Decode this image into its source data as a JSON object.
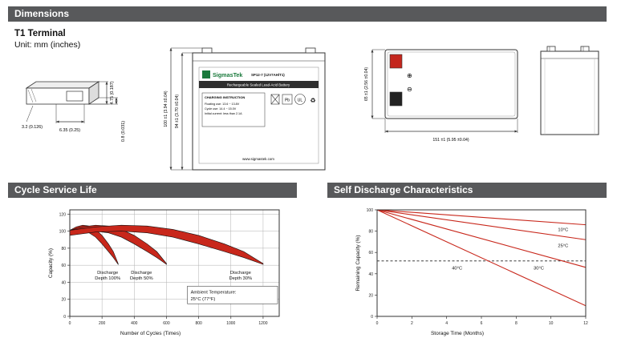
{
  "colors": {
    "header_bg": "#58595b",
    "header_text": "#ffffff",
    "red": "#c8271b",
    "brand_green": "#1a7a3c",
    "line": "#333333"
  },
  "sections": {
    "dimensions_title": "Dimensions",
    "cycle_title": "Cycle Service Life",
    "self_discharge_title": "Self Discharge Characteristics"
  },
  "dimensions": {
    "terminal_type": "T1 Terminal",
    "unit_note": "Unit: mm (inches)",
    "terminal_detail": {
      "dim_height": "4.75 (0.187)",
      "dim_slot": "3.2 (0.126)",
      "dim_width": "6.35 (0.25)",
      "dim_thickness": "0.8 (0.031)"
    },
    "front_view": {
      "dim_total_height": "100 ±1 (3.94 ±0.04)",
      "dim_case_height": "94 ±1 (3.70 ±0.04)",
      "brand": "SigmasTek",
      "model": "SP12-7 (12V7AH/T1)",
      "type_line": "Rechargeable Sealed Lead-Acid Battery",
      "charging_title": "CHARGING INSTRUCTION",
      "charging_line1": "Floating use: 13.6 ~ 13.8V",
      "charging_line2": "Cycle use: 14.4 ~ 15.0V",
      "charging_line3": "Initial current: less than 2.1A",
      "website": "www.sigmastek.com",
      "pb": "Pb",
      "ul": "UL",
      "recycle": "♻"
    },
    "top_view": {
      "dim_depth": "65 ±1 (2.56 ±0.04)",
      "dim_length": "151 ±1 (5.95 ±0.04)",
      "plus": "⊕",
      "minus": "⊖"
    }
  },
  "chart_data": [
    {
      "id": "cycle",
      "type": "area",
      "title": "Cycle Service Life",
      "xlabel": "Number of Cycles (Times)",
      "ylabel": "Capacity (%)",
      "xlim": [
        0,
        1300
      ],
      "ylim": [
        0,
        125
      ],
      "xticks": [
        0,
        200,
        400,
        600,
        800,
        1000,
        1200
      ],
      "yticks": [
        0,
        20,
        40,
        60,
        80,
        100,
        120
      ],
      "grid": true,
      "annotation_lines": [
        "Ambient Temperature:",
        "25°C (77°F)"
      ],
      "annotation_x": 750,
      "annotation_y": 27,
      "bands": [
        {
          "name": "Discharge Depth 100%",
          "label": [
            "Discharge",
            "Depth 100%"
          ],
          "label_x": 235,
          "label_y": 50,
          "upper": [
            [
              0,
              101
            ],
            [
              40,
              105
            ],
            [
              80,
              107
            ],
            [
              120,
              106
            ],
            [
              160,
              102
            ],
            [
              200,
              95
            ],
            [
              240,
              85
            ],
            [
              270,
              76
            ],
            [
              300,
              62
            ]
          ],
          "lower": [
            [
              0,
              95
            ],
            [
              40,
              99
            ],
            [
              80,
              100
            ],
            [
              120,
              98
            ],
            [
              160,
              93
            ],
            [
              200,
              85
            ],
            [
              240,
              76
            ],
            [
              270,
              69
            ],
            [
              300,
              61
            ]
          ]
        },
        {
          "name": "Discharge Depth 50%",
          "label": [
            "Discharge",
            "Depth 50%"
          ],
          "label_x": 445,
          "label_y": 50,
          "upper": [
            [
              0,
              101
            ],
            [
              80,
              105
            ],
            [
              160,
              107
            ],
            [
              240,
              106
            ],
            [
              320,
              102
            ],
            [
              400,
              95
            ],
            [
              480,
              85
            ],
            [
              540,
              76
            ],
            [
              600,
              62
            ]
          ],
          "lower": [
            [
              0,
              95
            ],
            [
              80,
              99
            ],
            [
              160,
              100
            ],
            [
              240,
              98
            ],
            [
              320,
              93
            ],
            [
              400,
              85
            ],
            [
              480,
              76
            ],
            [
              540,
              69
            ],
            [
              600,
              61
            ]
          ]
        },
        {
          "name": "Discharge Depth 30%",
          "label": [
            "Discharge",
            "Depth 30%"
          ],
          "label_x": 1060,
          "label_y": 50,
          "upper": [
            [
              0,
              101
            ],
            [
              160,
              105
            ],
            [
              320,
              107
            ],
            [
              480,
              106
            ],
            [
              640,
              102
            ],
            [
              800,
              95
            ],
            [
              960,
              85
            ],
            [
              1080,
              76
            ],
            [
              1200,
              62
            ]
          ],
          "lower": [
            [
              0,
              95
            ],
            [
              160,
              99
            ],
            [
              320,
              100
            ],
            [
              480,
              98
            ],
            [
              640,
              93
            ],
            [
              800,
              85
            ],
            [
              960,
              76
            ],
            [
              1080,
              69
            ],
            [
              1200,
              61
            ]
          ]
        }
      ]
    },
    {
      "id": "self",
      "type": "line",
      "title": "Self Discharge Characteristics",
      "xlabel": "Storage Time (Months)",
      "ylabel": "Remaining Capacity (%)",
      "xlim": [
        0,
        12
      ],
      "ylim": [
        0,
        100
      ],
      "xticks": [
        0,
        2,
        4,
        6,
        8,
        10,
        12
      ],
      "yticks": [
        0,
        20,
        40,
        60,
        80,
        100
      ],
      "grid": false,
      "dashed_y": 52,
      "series": [
        {
          "name": "10°C",
          "points": [
            [
              0,
              100
            ],
            [
              12,
              86
            ]
          ],
          "label_x": 10.7,
          "label_y": 80
        },
        {
          "name": "25°C",
          "points": [
            [
              0,
              100
            ],
            [
              12,
              72
            ]
          ],
          "label_x": 10.7,
          "label_y": 65
        },
        {
          "name": "30°C",
          "points": [
            [
              0,
              100
            ],
            [
              12,
              46
            ]
          ],
          "label_x": 9.3,
          "label_y": 44
        },
        {
          "name": "40°C",
          "points": [
            [
              0,
              100
            ],
            [
              12,
              10
            ]
          ],
          "label_x": 4.6,
          "label_y": 44
        }
      ]
    }
  ]
}
